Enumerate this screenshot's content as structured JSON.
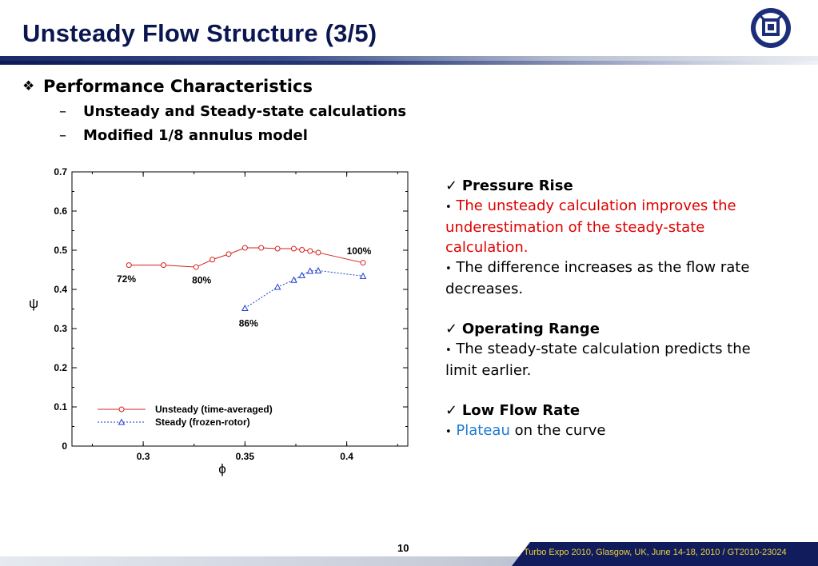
{
  "slide": {
    "title": "Unsteady Flow Structure (3/5)",
    "bullet": "Performance Characteristics",
    "bullet_marker": "❖",
    "subs": [
      {
        "dash": "–",
        "text": "Unsteady and Steady-state calculations"
      },
      {
        "dash": "–",
        "text": "Modified 1/8 annulus model"
      }
    ],
    "page_number": "10",
    "footer": "Turbo Expo 2010, Glasgow, UK, June 14-18, 2010 / GT2010-23024"
  },
  "notes": {
    "check": "✓",
    "bullet": "•",
    "pressure": {
      "head": "Pressure Rise",
      "red_text": "The unsteady calculation improves the underestimation of the steady-state calculation.",
      "text2": "The difference increases as the flow rate decreases."
    },
    "operating": {
      "head": "Operating Range",
      "text": "The steady-state calculation predicts the limit earlier."
    },
    "lowflow": {
      "head": "Low Flow Rate",
      "blue_word": "Plateau",
      "rest": " on the curve"
    }
  },
  "colors": {
    "unsteady": "#d62020",
    "steady": "#1e3fd0",
    "title": "#0a1650"
  },
  "chart_data": {
    "type": "line",
    "xlabel": "ϕ",
    "ylabel": "ψ",
    "xlim": [
      0.265,
      0.43
    ],
    "ylim": [
      0,
      0.7
    ],
    "xticks": [
      0.3,
      0.35,
      0.4
    ],
    "xtick_labels": [
      "0.3",
      "0.35",
      "0.4"
    ],
    "yticks": [
      0,
      0.1,
      0.2,
      0.3,
      0.4,
      0.5,
      0.6,
      0.7
    ],
    "ytick_labels": [
      "0",
      "0.1",
      "0.2",
      "0.3",
      "0.4",
      "0.5",
      "0.6",
      "0.7"
    ],
    "legend_position": "bottom-left",
    "series": [
      {
        "name": "Unsteady (time-averaged)",
        "marker": "circle",
        "line": "solid",
        "x": [
          0.293,
          0.31,
          0.326,
          0.334,
          0.342,
          0.35,
          0.358,
          0.366,
          0.374,
          0.378,
          0.382,
          0.386,
          0.408
        ],
        "y": [
          0.462,
          0.462,
          0.457,
          0.476,
          0.49,
          0.506,
          0.506,
          0.504,
          0.504,
          0.501,
          0.498,
          0.494,
          0.468
        ]
      },
      {
        "name": "Steady (frozen-rotor)",
        "marker": "triangle",
        "line": "dotted",
        "x": [
          0.35,
          0.366,
          0.374,
          0.378,
          0.382,
          0.386,
          0.408
        ],
        "y": [
          0.352,
          0.406,
          0.424,
          0.436,
          0.447,
          0.448,
          0.434
        ]
      }
    ],
    "annotations": [
      {
        "text": "72%",
        "x": 0.287,
        "y": 0.418
      },
      {
        "text": "80%",
        "x": 0.324,
        "y": 0.415
      },
      {
        "text": "86%",
        "x": 0.347,
        "y": 0.305
      },
      {
        "text": "100%",
        "x": 0.4,
        "y": 0.49
      }
    ]
  }
}
